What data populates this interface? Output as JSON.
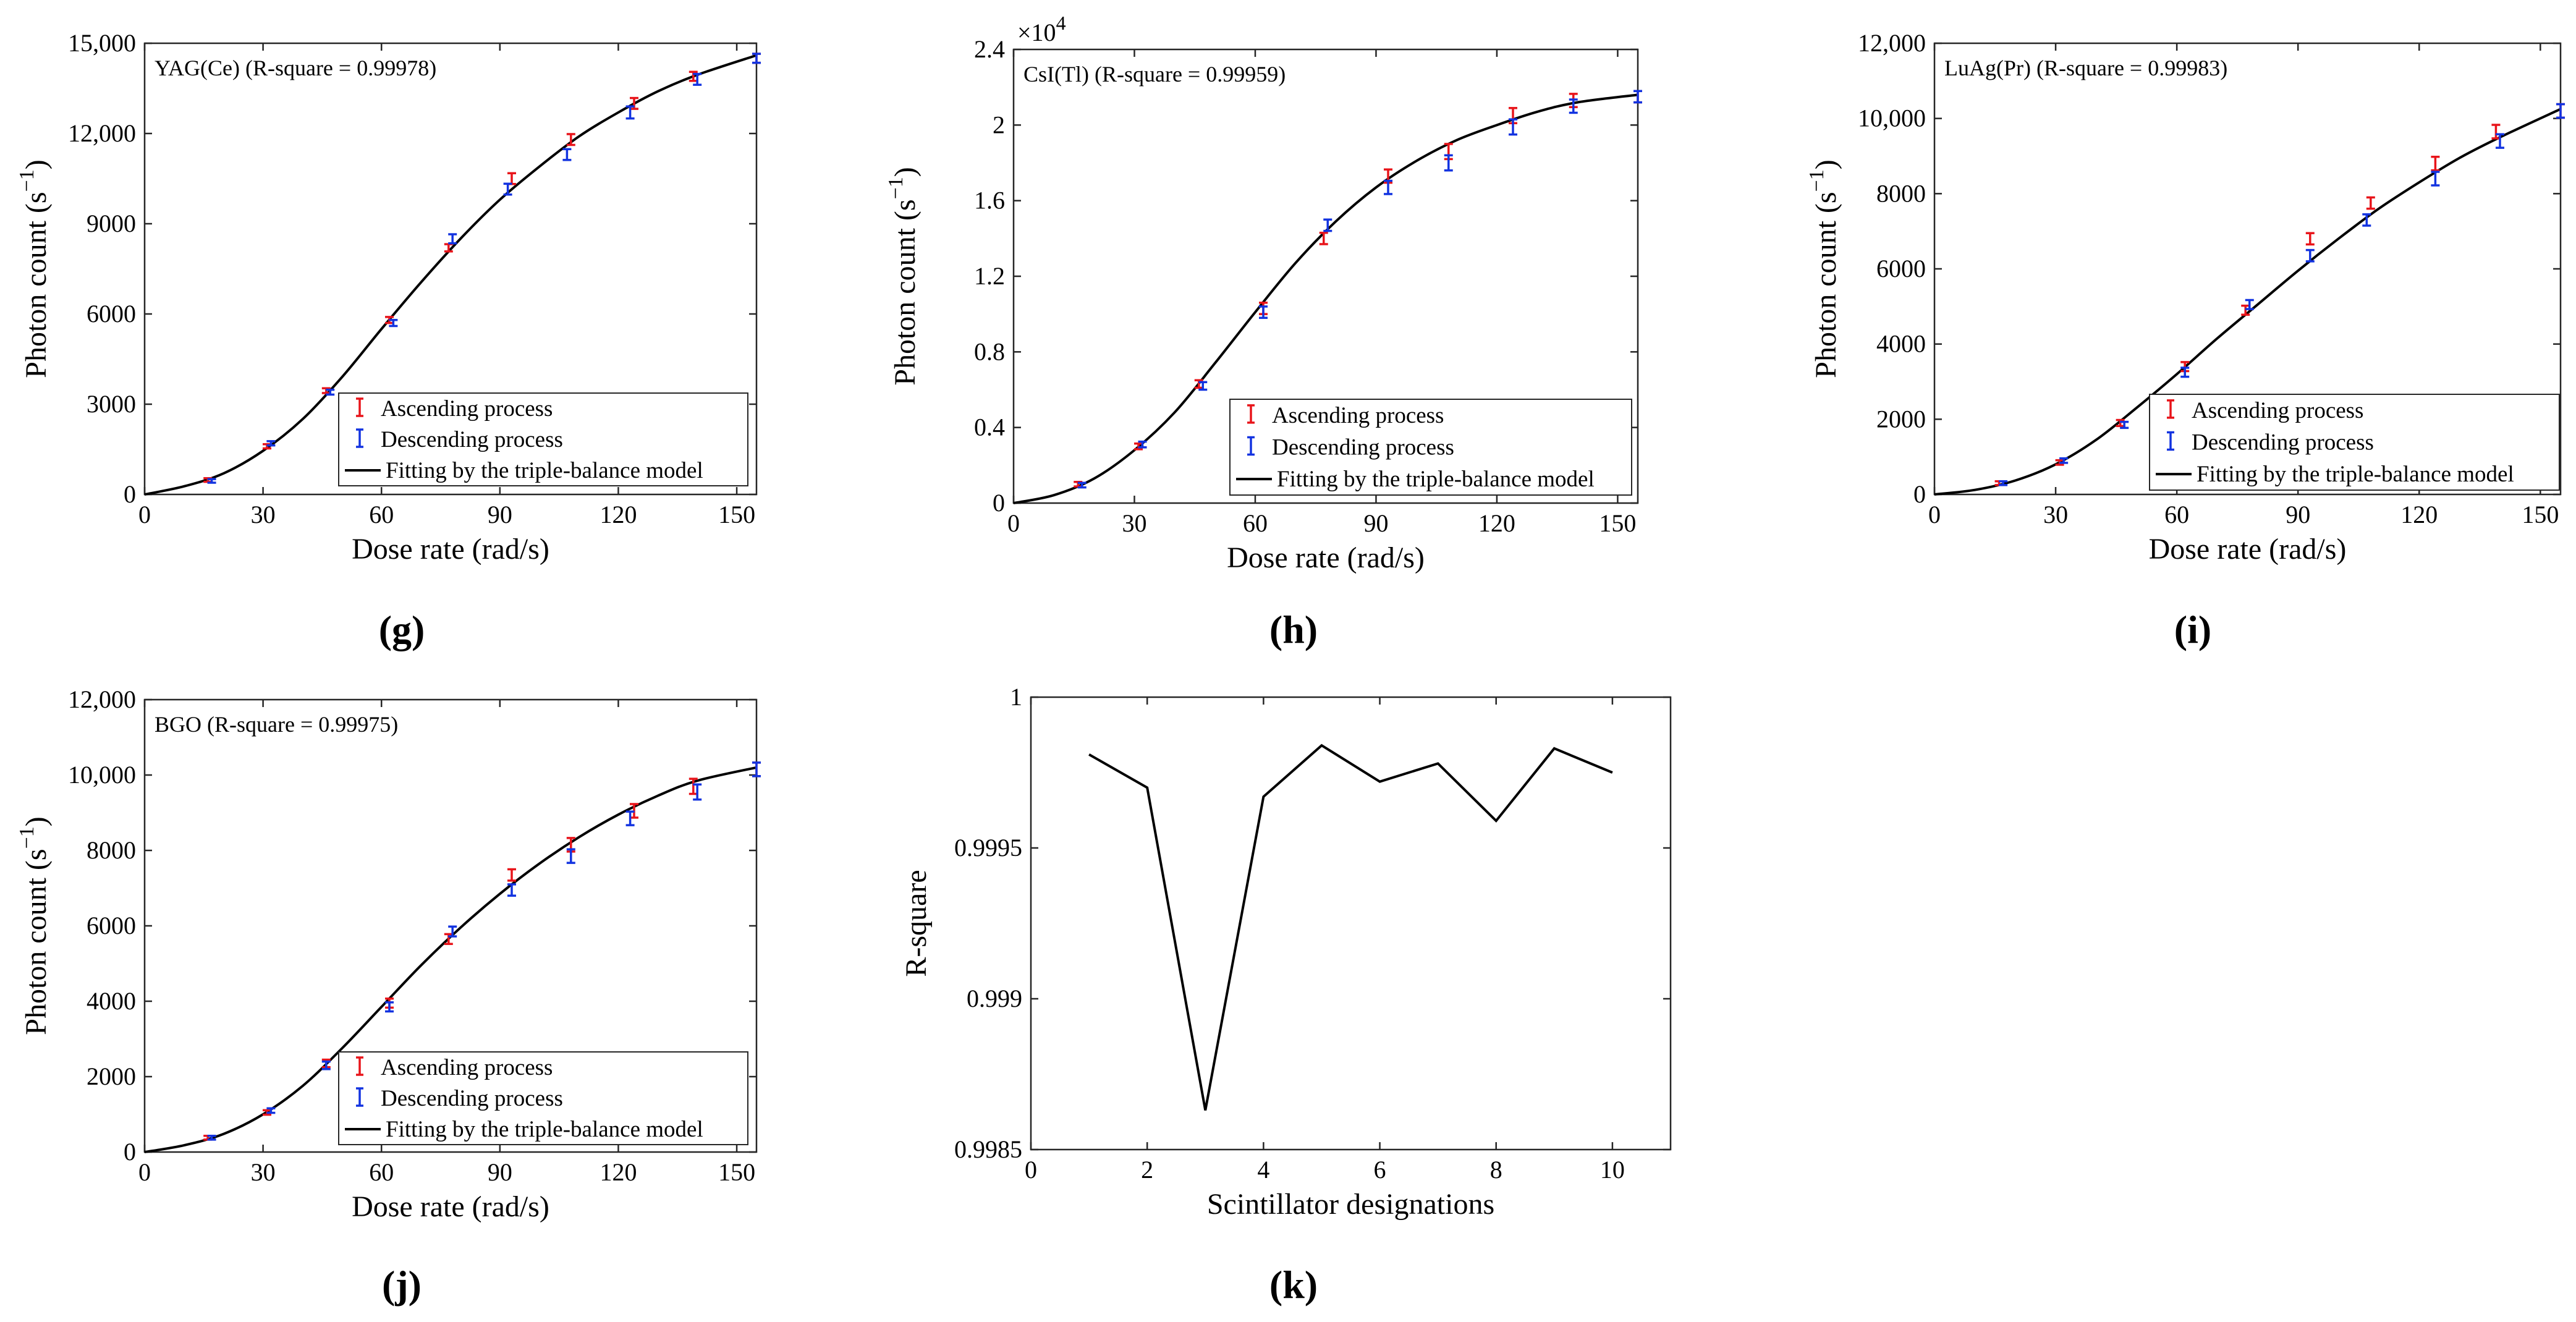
{
  "charts": [
    {
      "id": "g",
      "panel_label": "(g)",
      "chart_data": {
        "type": "scatter",
        "annotation": "YAG(Ce) (R-square = 0.99978)",
        "xlabel": "Dose rate (rad/s)",
        "ylabel": "Photon count (s",
        "ylabel_sup": "−1",
        "ylabel_tail": ")",
        "xlim": [
          0,
          155
        ],
        "ylim": [
          0,
          15000
        ],
        "xticks": [
          0,
          30,
          60,
          90,
          120,
          150
        ],
        "xtick_labels": [
          "0",
          "30",
          "60",
          "90",
          "120",
          "150"
        ],
        "yticks": [
          0,
          3000,
          6000,
          9000,
          12000,
          15000
        ],
        "ytick_labels": [
          "0",
          "3000",
          "6000",
          "9000",
          "12,000",
          "15,000"
        ],
        "legend": [
          "Ascending process",
          "Descending process",
          "Fitting by the triple-balance model"
        ],
        "fit": {
          "x": [
            0,
            10,
            20,
            30,
            40,
            50,
            60,
            70,
            80,
            90,
            100,
            110,
            120,
            130,
            140,
            155
          ],
          "y": [
            0,
            270,
            700,
            1450,
            2500,
            3900,
            5500,
            7050,
            8500,
            9800,
            10900,
            11900,
            12700,
            13400,
            13950,
            14600
          ]
        },
        "series": [
          {
            "name": "Ascending process",
            "color": "#e8141a",
            "x": [
              16,
              31,
              46,
              62,
              77,
              93,
              108,
              124,
              139,
              155
            ],
            "y": [
              480,
              1600,
              3450,
              5800,
              8200,
              10500,
              11800,
              13000,
              13900,
              14500
            ],
            "err": [
              60,
              70,
              80,
              100,
              120,
              180,
              180,
              180,
              150,
              150
            ]
          },
          {
            "name": "Descending process",
            "color": "#1233e0",
            "x": [
              17,
              32,
              47,
              63,
              78,
              92,
              107,
              123,
              140,
              155
            ],
            "y": [
              450,
              1700,
              3400,
              5700,
              8500,
              10150,
              11300,
              12700,
              13800,
              14500
            ],
            "err": [
              60,
              70,
              80,
              100,
              150,
              180,
              180,
              200,
              180,
              150
            ]
          }
        ]
      }
    },
    {
      "id": "h",
      "panel_label": "(h)",
      "chart_data": {
        "type": "scatter",
        "annotation": "CsI(Tl) (R-square = 0.99959)",
        "multiplier": "×10",
        "multiplier_exp": "4",
        "xlabel": "Dose rate (rad/s)",
        "ylabel": "Photon count (s",
        "ylabel_sup": "−1",
        "ylabel_tail": ")",
        "xlim": [
          0,
          155
        ],
        "ylim": [
          0,
          24000
        ],
        "xticks": [
          0,
          30,
          60,
          90,
          120,
          150
        ],
        "xtick_labels": [
          "0",
          "30",
          "60",
          "90",
          "120",
          "150"
        ],
        "yticks": [
          0,
          4000,
          8000,
          12000,
          16000,
          20000,
          24000
        ],
        "ytick_labels": [
          "0",
          "0.4",
          "0.8",
          "1.2",
          "1.6",
          "2",
          "2.4"
        ],
        "legend": [
          "Ascending process",
          "Descending process",
          "Fitting by the triple-balance model"
        ],
        "fit": {
          "x": [
            0,
            10,
            20,
            30,
            40,
            50,
            60,
            70,
            80,
            90,
            100,
            110,
            120,
            130,
            140,
            155
          ],
          "y": [
            0,
            420,
            1300,
            2800,
            4800,
            7400,
            10100,
            12700,
            14900,
            16700,
            18100,
            19200,
            20000,
            20700,
            21200,
            21600
          ]
        },
        "series": [
          {
            "name": "Ascending process",
            "color": "#e8141a",
            "x": [
              16,
              31,
              46,
              62,
              77,
              93,
              108,
              124,
              139,
              155
            ],
            "y": [
              1000,
              3000,
              6300,
              10300,
              14000,
              17300,
              18600,
              20500,
              21300,
              21500
            ],
            "err": [
              120,
              150,
              200,
              300,
              300,
              350,
              400,
              400,
              350,
              300
            ]
          },
          {
            "name": "Descending process",
            "color": "#1233e0",
            "x": [
              17,
              32,
              47,
              62,
              78,
              93,
              108,
              124,
              139,
              155
            ],
            "y": [
              950,
              3100,
              6200,
              10100,
              14700,
              16700,
              18000,
              19900,
              21000,
              21500
            ],
            "err": [
              120,
              150,
              200,
              300,
              300,
              350,
              400,
              400,
              350,
              300
            ]
          }
        ]
      }
    },
    {
      "id": "i",
      "panel_label": "(i)",
      "chart_data": {
        "type": "scatter",
        "annotation": "LuAg(Pr) (R-square = 0.99983)",
        "xlabel": "Dose rate (rad/s)",
        "ylabel": "Photon count (s",
        "ylabel_sup": "−1",
        "ylabel_tail": ")",
        "xlim": [
          0,
          155
        ],
        "ylim": [
          0,
          12000
        ],
        "xticks": [
          0,
          30,
          60,
          90,
          120,
          150
        ],
        "xtick_labels": [
          "0",
          "30",
          "60",
          "90",
          "120",
          "150"
        ],
        "yticks": [
          0,
          2000,
          4000,
          6000,
          8000,
          10000,
          12000
        ],
        "ytick_labels": [
          "0",
          "2000",
          "4000",
          "6000",
          "8000",
          "10,000",
          "12,000"
        ],
        "legend": [
          "Ascending process",
          "Descending process",
          "Fitting by the triple-balance model"
        ],
        "fit": {
          "x": [
            0,
            10,
            20,
            30,
            40,
            50,
            60,
            70,
            80,
            90,
            100,
            110,
            120,
            130,
            140,
            155
          ],
          "y": [
            0,
            120,
            370,
            800,
            1450,
            2300,
            3200,
            4150,
            5050,
            5950,
            6800,
            7600,
            8300,
            8950,
            9500,
            10250
          ]
        },
        "series": [
          {
            "name": "Ascending process",
            "color": "#e8141a",
            "x": [
              16,
              31,
              46,
              62,
              77,
              93,
              108,
              124,
              139,
              155
            ],
            "y": [
              300,
              850,
              1900,
              3400,
              4900,
              6800,
              7750,
              8800,
              9650,
              10200
            ],
            "err": [
              50,
              60,
              80,
              120,
              120,
              150,
              150,
              180,
              180,
              180
            ]
          },
          {
            "name": "Descending process",
            "color": "#1233e0",
            "x": [
              17,
              32,
              47,
              62,
              78,
              93,
              107,
              124,
              140,
              155
            ],
            "y": [
              300,
              900,
              1850,
              3250,
              5050,
              6350,
              7300,
              8400,
              9400,
              10200
            ],
            "err": [
              50,
              60,
              80,
              120,
              120,
              150,
              150,
              180,
              180,
              180
            ]
          }
        ]
      }
    },
    {
      "id": "j",
      "panel_label": "(j)",
      "chart_data": {
        "type": "scatter",
        "annotation": "BGO (R-square = 0.99975)",
        "xlabel": "Dose rate (rad/s)",
        "ylabel": "Photon count (s",
        "ylabel_sup": "−1",
        "ylabel_tail": ")",
        "xlim": [
          0,
          155
        ],
        "ylim": [
          0,
          12000
        ],
        "xticks": [
          0,
          30,
          60,
          90,
          120,
          150
        ],
        "xtick_labels": [
          "0",
          "30",
          "60",
          "90",
          "120",
          "150"
        ],
        "yticks": [
          0,
          2000,
          4000,
          6000,
          8000,
          10000,
          12000
        ],
        "ytick_labels": [
          "0",
          "2000",
          "4000",
          "6000",
          "8000",
          "10,000",
          "12,000"
        ],
        "legend": [
          "Ascending process",
          "Descending process",
          "Fitting by the triple-balance model"
        ],
        "fit": {
          "x": [
            0,
            10,
            20,
            30,
            40,
            50,
            60,
            70,
            80,
            90,
            100,
            110,
            120,
            130,
            140,
            155
          ],
          "y": [
            0,
            180,
            480,
            1000,
            1750,
            2750,
            3850,
            4950,
            5950,
            6850,
            7650,
            8350,
            8950,
            9450,
            9850,
            10200
          ]
        },
        "series": [
          {
            "name": "Ascending process",
            "color": "#e8141a",
            "x": [
              16,
              31,
              46,
              62,
              77,
              93,
              108,
              124,
              139,
              155
            ],
            "y": [
              380,
              1050,
              2350,
              3950,
              5650,
              7350,
              8150,
              9050,
              9700,
              10150
            ],
            "err": [
              50,
              60,
              100,
              120,
              130,
              150,
              180,
              180,
              200,
              180
            ]
          },
          {
            "name": "Descending process",
            "color": "#1233e0",
            "x": [
              17,
              32,
              46,
              62,
              78,
              93,
              108,
              123,
              140,
              155
            ],
            "y": [
              380,
              1100,
              2300,
              3850,
              5850,
              6950,
              7850,
              8850,
              9550,
              10150
            ],
            "err": [
              50,
              60,
              100,
              120,
              130,
              150,
              180,
              180,
              200,
              180
            ]
          }
        ]
      }
    },
    {
      "id": "k",
      "panel_label": "(k)",
      "chart_data": {
        "type": "line",
        "xlabel": "Scintillator designations",
        "ylabel": "R-square",
        "xlim": [
          0,
          11
        ],
        "ylim": [
          0.9985,
          1
        ],
        "xticks": [
          0,
          2,
          4,
          6,
          8,
          10
        ],
        "xtick_labels": [
          "0",
          "2",
          "4",
          "6",
          "8",
          "10"
        ],
        "yticks": [
          0.9985,
          0.999,
          0.9995,
          1
        ],
        "ytick_labels": [
          "0.9985",
          "0.999",
          "0.9995",
          "1"
        ],
        "series": [
          {
            "name": "R-square",
            "color": "#000000",
            "x": [
              1,
              2,
              3,
              4,
              5,
              6,
              7,
              8,
              9,
              10
            ],
            "y": [
              0.99981,
              0.9997,
              0.99863,
              0.99967,
              0.99984,
              0.99972,
              0.99978,
              0.99959,
              0.99983,
              0.99975
            ]
          }
        ]
      }
    }
  ]
}
